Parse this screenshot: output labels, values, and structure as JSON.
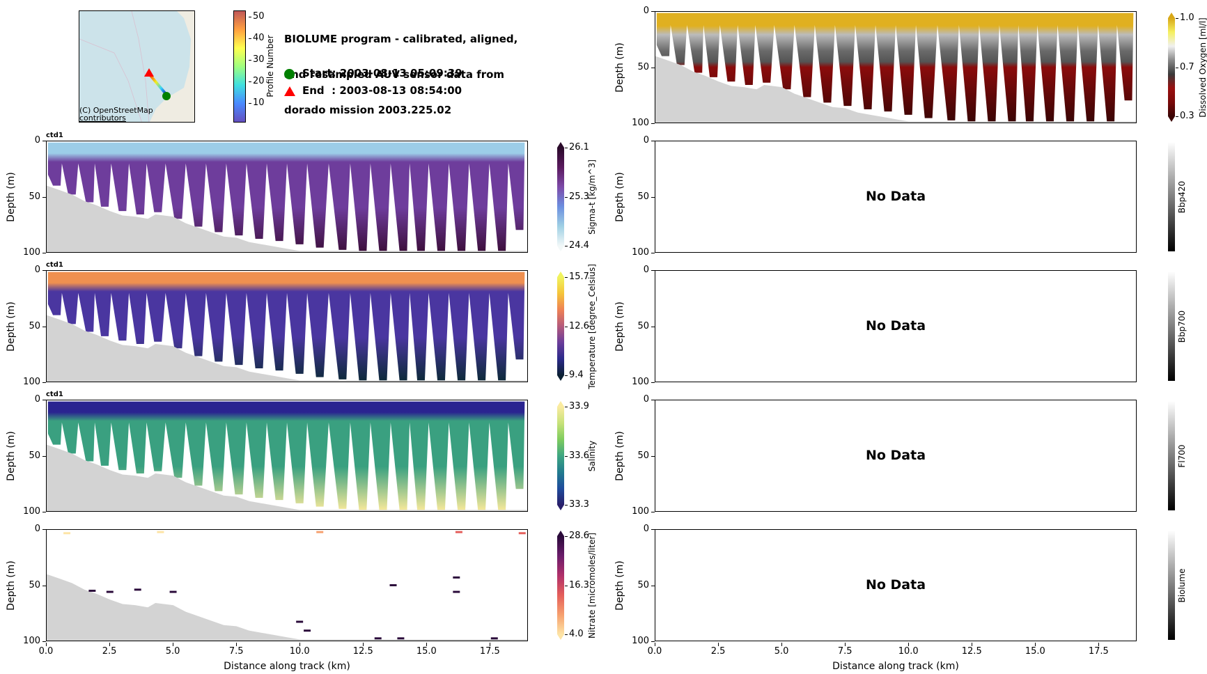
{
  "header": {
    "title_lines": [
      "BIOLUME program - calibrated, aligned,",
      "and resampled AUV sensor data from",
      "dorado mission 2003.225.02"
    ],
    "start_label": "Start: 2003-08-13 05:09:39",
    "end_label": "End  : 2003-08-13 08:54:00",
    "start_marker_color": "#008000",
    "end_marker_color": "#ff0000"
  },
  "map": {
    "attribution_lines": [
      "(C) OpenStreetMap",
      "contributors"
    ],
    "water_color": "#cce3ea",
    "colorbar": {
      "label": "Profile Number",
      "ticks": [
        "10",
        "20",
        "30",
        "40",
        "50"
      ],
      "range": [
        1,
        52
      ]
    }
  },
  "chart_data": [
    {
      "type": "heatmap",
      "id": "sigma_t",
      "tag": "ctd1",
      "ylabel": "Depth (m)",
      "xlabel": "",
      "yticks": [
        "0",
        "50",
        "100"
      ],
      "ylim": [
        100,
        0
      ],
      "xlim": [
        0,
        19
      ],
      "colorbar": {
        "label": "Sigma-t [kg/m^3]",
        "ticks": [
          "26.1",
          "25.3",
          "24.4"
        ],
        "range": [
          24.4,
          26.1
        ],
        "colors": [
          "#f2f8f8",
          "#9fd0e4",
          "#6c8fe0",
          "#7d4aa8",
          "#5a1a5e",
          "#2a0a2a"
        ]
      },
      "layers": {
        "surface": "#9ccde8",
        "mid": "#6e3d9c",
        "deep": "#3d0f3d"
      },
      "has_data": true
    },
    {
      "type": "heatmap",
      "id": "temperature",
      "tag": "ctd1",
      "ylabel": "Depth (m)",
      "xlabel": "",
      "yticks": [
        "0",
        "50",
        "100"
      ],
      "ylim": [
        100,
        0
      ],
      "xlim": [
        0,
        19
      ],
      "colorbar": {
        "label": "Temperature [degree_Celsius]",
        "ticks": [
          "15.7",
          "12.6",
          "9.4"
        ],
        "range": [
          9.4,
          15.7
        ],
        "colors": [
          "#0b2033",
          "#2b2a8a",
          "#6a3d9a",
          "#b45a7b",
          "#ee8155",
          "#f5c43a",
          "#f0f35e"
        ]
      },
      "layers": {
        "surface": "#f09050",
        "mid": "#4a36a0",
        "deep": "#0d2a3a"
      },
      "has_data": true
    },
    {
      "type": "heatmap",
      "id": "salinity",
      "tag": "ctd1",
      "ylabel": "Depth (m)",
      "xlabel": "",
      "yticks": [
        "0",
        "50",
        "100"
      ],
      "ylim": [
        100,
        0
      ],
      "xlim": [
        0,
        19
      ],
      "colorbar": {
        "label": "Salinity",
        "ticks": [
          "33.9",
          "33.6",
          "33.3"
        ],
        "range": [
          33.3,
          33.9
        ],
        "colors": [
          "#281e6a",
          "#1f4c9c",
          "#227c8e",
          "#3ea682",
          "#7fcc5e",
          "#c8e27a",
          "#faeba0"
        ]
      },
      "layers": {
        "surface": "#2a2490",
        "mid": "#3aa080",
        "deep": "#f5e89a"
      },
      "has_data": true
    },
    {
      "type": "heatmap",
      "id": "nitrate",
      "tag": "",
      "ylabel": "Depth (m)",
      "xlabel": "Distance along track (km)",
      "yticks": [
        "0",
        "50",
        "100"
      ],
      "ylim": [
        100,
        0
      ],
      "xlim": [
        0,
        19
      ],
      "xticks": [
        "0.0",
        "2.5",
        "5.0",
        "7.5",
        "10.0",
        "12.5",
        "15.0",
        "17.5"
      ],
      "colorbar": {
        "label": "Nitrate [micromoles/liter]",
        "ticks": [
          "28.6",
          "16.3",
          "4.0"
        ],
        "range": [
          4.0,
          28.6
        ],
        "colors": [
          "#fde4a6",
          "#f6a06e",
          "#e45e5a",
          "#b0306a",
          "#6a1c6a",
          "#2a0a3a"
        ]
      },
      "has_data": true
    },
    {
      "type": "heatmap",
      "id": "dissolved_oxygen",
      "tag": "",
      "ylabel": "Depth (m)",
      "xlabel": "",
      "yticks": [
        "0",
        "50",
        "100"
      ],
      "ylim": [
        100,
        0
      ],
      "xlim": [
        0,
        19
      ],
      "colorbar": {
        "label": "Dissolved Oxygen [ml/l]",
        "ticks": [
          "1.0",
          "0.7",
          "0.3"
        ],
        "range": [
          0.3,
          1.0
        ],
        "colors": [
          "#3a0505",
          "#7a0a0a",
          "#9a1010",
          "#3a3a3a",
          "#8a8a8a",
          "#f0f0f0",
          "#f5f060",
          "#d8a818"
        ]
      },
      "layers": {
        "surface": "#e0b020",
        "mid": "#6a6a6a",
        "deep": "#8a0c0c"
      },
      "has_data": true
    },
    {
      "type": "heatmap",
      "id": "bbp420",
      "ylabel": "Depth (m)",
      "xlabel": "",
      "yticks": [
        "0",
        "50",
        "100"
      ],
      "ylim": [
        100,
        0
      ],
      "xlim": [
        0,
        19
      ],
      "colorbar": {
        "label": "Bbp420",
        "ticks": [],
        "colors": [
          "#000000",
          "#ffffff"
        ]
      },
      "has_data": false,
      "message": "No Data"
    },
    {
      "type": "heatmap",
      "id": "bbp700",
      "ylabel": "Depth (m)",
      "xlabel": "",
      "yticks": [
        "0",
        "50",
        "100"
      ],
      "ylim": [
        100,
        0
      ],
      "xlim": [
        0,
        19
      ],
      "colorbar": {
        "label": "Bbp700",
        "ticks": [],
        "colors": [
          "#000000",
          "#ffffff"
        ]
      },
      "has_data": false,
      "message": "No Data"
    },
    {
      "type": "heatmap",
      "id": "fl700",
      "ylabel": "Depth (m)",
      "xlabel": "",
      "yticks": [
        "0",
        "50",
        "100"
      ],
      "ylim": [
        100,
        0
      ],
      "xlim": [
        0,
        19
      ],
      "colorbar": {
        "label": "Fl700",
        "ticks": [],
        "colors": [
          "#000000",
          "#ffffff"
        ]
      },
      "has_data": false,
      "message": "No Data"
    },
    {
      "type": "heatmap",
      "id": "biolume",
      "ylabel": "Depth (m)",
      "xlabel": "Distance along track (km)",
      "yticks": [
        "0",
        "50",
        "100"
      ],
      "ylim": [
        100,
        0
      ],
      "xlim": [
        0,
        19
      ],
      "xticks": [
        "0.0",
        "2.5",
        "5.0",
        "7.5",
        "10.0",
        "12.5",
        "15.0",
        "17.5"
      ],
      "colorbar": {
        "label": "Biolume",
        "ticks": [],
        "colors": [
          "#000000",
          "#ffffff"
        ]
      },
      "has_data": false,
      "message": "No Data"
    }
  ],
  "bathymetry": {
    "color": "#d3d3d3",
    "distance_km": [
      0,
      0.5,
      1,
      1.5,
      2,
      2.5,
      3,
      3.5,
      4,
      4.3,
      5,
      5.5,
      6,
      6.5,
      7,
      7.5,
      8,
      8.5,
      9,
      9.5,
      10,
      19
    ],
    "depth_m": [
      40,
      44,
      48,
      54,
      58,
      63,
      67,
      68,
      70,
      66,
      68,
      74,
      78,
      82,
      86,
      87,
      91,
      93,
      95,
      97,
      99,
      99
    ]
  },
  "profiles": {
    "count": 28,
    "dive_bottom_km": [
      0.3,
      0.9,
      1.6,
      2.2,
      2.9,
      3.6,
      4.3,
      5.1,
      5.9,
      6.7,
      7.5,
      8.3,
      9.1,
      9.9,
      10.7,
      11.6,
      12.4,
      13.2,
      14.0,
      14.7,
      15.5,
      16.3,
      17.1,
      17.9,
      18.6
    ],
    "dive_bottom_depth_m": [
      40,
      48,
      55,
      59,
      63,
      66,
      64,
      70,
      77,
      82,
      85,
      88,
      90,
      93,
      96,
      98,
      99,
      99,
      99,
      99,
      99,
      99,
      99,
      99,
      80
    ]
  },
  "nitrate_points": [
    {
      "km": 0.8,
      "depth": 3,
      "color": "#fde4a6"
    },
    {
      "km": 4.5,
      "depth": 2,
      "color": "#fde4a6"
    },
    {
      "km": 10.8,
      "depth": 2,
      "color": "#f6a06e"
    },
    {
      "km": 16.3,
      "depth": 2,
      "color": "#e45e5a"
    },
    {
      "km": 18.8,
      "depth": 3,
      "color": "#e45e5a"
    },
    {
      "km": 1.8,
      "depth": 55,
      "color": "#2a0a3a"
    },
    {
      "km": 2.5,
      "depth": 56,
      "color": "#2a0a3a"
    },
    {
      "km": 3.6,
      "depth": 54,
      "color": "#2a0a3a"
    },
    {
      "km": 5.0,
      "depth": 56,
      "color": "#2a0a3a"
    },
    {
      "km": 13.7,
      "depth": 50,
      "color": "#2a0a3a"
    },
    {
      "km": 16.2,
      "depth": 43,
      "color": "#2a0a3a"
    },
    {
      "km": 16.2,
      "depth": 56,
      "color": "#2a0a3a"
    },
    {
      "km": 10.0,
      "depth": 83,
      "color": "#2a0a3a"
    },
    {
      "km": 10.3,
      "depth": 91,
      "color": "#2a0a3a"
    },
    {
      "km": 13.1,
      "depth": 98,
      "color": "#2a0a3a"
    },
    {
      "km": 14.0,
      "depth": 98,
      "color": "#2a0a3a"
    },
    {
      "km": 17.7,
      "depth": 98,
      "color": "#2a0a3a"
    }
  ]
}
